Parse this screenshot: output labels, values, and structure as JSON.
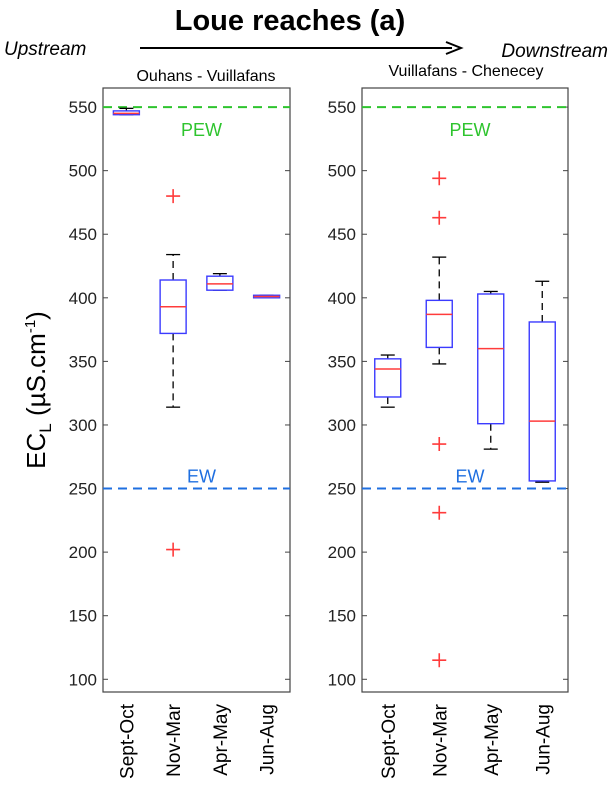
{
  "header": {
    "title": "Loue reaches (a)",
    "upstream": "Upstream",
    "downstream": "Downstream"
  },
  "y_label_main": "EC",
  "y_label_sub": "L",
  "y_label_unit": " (µS.cm",
  "y_label_sup": "-1",
  "y_label_close": ")",
  "colors": {
    "box": "#3b3bff",
    "median": "#ff3b3b",
    "outlier": "#ff3b3b",
    "whisker": "#000000",
    "pew": "#2ec42e",
    "ew": "#1f6fe0"
  },
  "chart_data": [
    {
      "type": "box",
      "subtitle": "Ouhans - Vuillafans",
      "categories": [
        "Sept-Oct",
        "Nov-Mar",
        "Apr-May",
        "Jun-Aug"
      ],
      "ylim": [
        90,
        565
      ],
      "yticks": [
        100,
        150,
        200,
        250,
        300,
        350,
        400,
        450,
        500,
        550
      ],
      "reference_lines": [
        {
          "label": "PEW",
          "value": 550,
          "color": "#2ec42e"
        },
        {
          "label": "EW",
          "value": 250,
          "color": "#1f6fe0"
        }
      ],
      "boxes": [
        {
          "category": "Sept-Oct",
          "whisker_low": 544,
          "q1": 544,
          "median": 545,
          "q3": 547,
          "whisker_high": 549,
          "outliers": []
        },
        {
          "category": "Nov-Mar",
          "whisker_low": 314,
          "q1": 372,
          "median": 393,
          "q3": 414,
          "whisker_high": 434,
          "outliers": [
            480,
            202
          ]
        },
        {
          "category": "Apr-May",
          "whisker_low": 406,
          "q1": 406,
          "median": 411,
          "q3": 417,
          "whisker_high": 419,
          "outliers": []
        },
        {
          "category": "Jun-Aug",
          "whisker_low": 400,
          "q1": 400,
          "median": 401,
          "q3": 402,
          "whisker_high": 402,
          "outliers": []
        }
      ]
    },
    {
      "type": "box",
      "subtitle": "Vuillafans - Chenecey",
      "categories": [
        "Sept-Oct",
        "Nov-Mar",
        "Apr-May",
        "Jun-Aug"
      ],
      "ylim": [
        90,
        565
      ],
      "yticks": [
        100,
        150,
        200,
        250,
        300,
        350,
        400,
        450,
        500,
        550
      ],
      "reference_lines": [
        {
          "label": "PEW",
          "value": 550,
          "color": "#2ec42e"
        },
        {
          "label": "EW",
          "value": 250,
          "color": "#1f6fe0"
        }
      ],
      "boxes": [
        {
          "category": "Sept-Oct",
          "whisker_low": 314,
          "q1": 322,
          "median": 344,
          "q3": 352,
          "whisker_high": 355,
          "outliers": []
        },
        {
          "category": "Nov-Mar",
          "whisker_low": 348,
          "q1": 361,
          "median": 387,
          "q3": 398,
          "whisker_high": 432,
          "outliers": [
            494,
            463,
            285,
            231,
            115
          ]
        },
        {
          "category": "Apr-May",
          "whisker_low": 281,
          "q1": 301,
          "median": 360,
          "q3": 403,
          "whisker_high": 405,
          "outliers": []
        },
        {
          "category": "Jun-Aug",
          "whisker_low": 255,
          "q1": 256,
          "median": 303,
          "q3": 381,
          "whisker_high": 413,
          "outliers": []
        }
      ]
    }
  ]
}
